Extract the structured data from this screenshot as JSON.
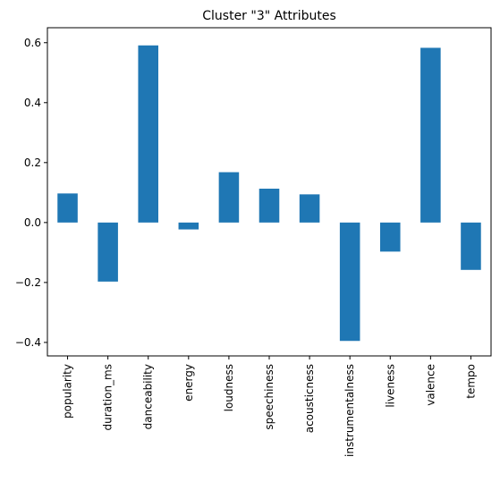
{
  "chart_data": {
    "type": "bar",
    "title": "Cluster \"3\" Attributes",
    "xlabel": "",
    "ylabel": "",
    "categories": [
      "popularity",
      "duration_ms",
      "danceability",
      "energy",
      "loudness",
      "speechiness",
      "acousticness",
      "instrumentalness",
      "liveness",
      "valence",
      "tempo"
    ],
    "values": [
      0.097,
      -0.197,
      0.591,
      -0.023,
      0.168,
      0.113,
      0.094,
      -0.395,
      -0.097,
      0.583,
      -0.158
    ],
    "ylim": [
      -0.445,
      0.65
    ],
    "yticks": [
      -0.4,
      -0.2,
      0.0,
      0.2,
      0.4,
      0.6
    ],
    "ytick_labels": [
      "−0.4",
      "−0.2",
      "0.0",
      "0.2",
      "0.4",
      "0.6"
    ],
    "grid": false,
    "bar_color": "#1f77b4"
  }
}
